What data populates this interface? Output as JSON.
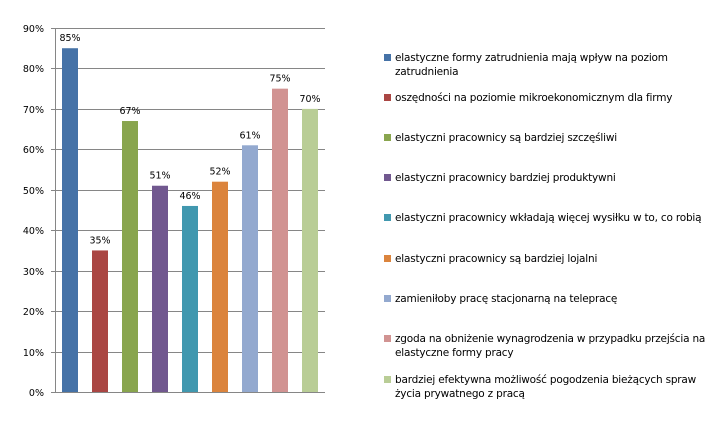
{
  "chart_data": {
    "type": "bar",
    "title": "",
    "xlabel": "",
    "ylabel": "",
    "ylim": [
      0,
      90
    ],
    "yticks": [
      "0%",
      "10%",
      "20%",
      "30%",
      "40%",
      "50%",
      "60%",
      "70%",
      "80%",
      "90%"
    ],
    "ytick_values": [
      0,
      10,
      20,
      30,
      40,
      50,
      60,
      70,
      80,
      90
    ],
    "grid": true,
    "legend_position": "right",
    "categories": [
      "elastyczne formy zatrudnienia mają wpływ na poziom zatrudnienia",
      "oszędności na poziomie mikroekonomicznym dla firmy",
      "elastyczni pracownicy są bardziej szczęśliwi",
      "elastyczni pracownicy bardziej produktywni",
      "elastyczni pracownicy wkładają więcej wysiłku w to, co robią",
      "elastyczni pracownicy są bardziej lojalni",
      "zamieniłoby pracę stacjonarną na telepracę",
      "zgoda na obniżenie wynagrodzenia w przypadku przejścia na elastyczne formy pracy",
      "bardziej efektywna możliwość pogodzenia bieżących spraw życia prywatnego z pracą"
    ],
    "values": [
      85,
      35,
      67,
      51,
      46,
      52,
      61,
      75,
      70
    ],
    "data_labels": [
      "85%",
      "35%",
      "67%",
      "51%",
      "46%",
      "52%",
      "61%",
      "75%",
      "70%"
    ],
    "colors": [
      "#4572A7",
      "#AA4643",
      "#89A54E",
      "#71588F",
      "#4198AF",
      "#DB843D",
      "#93A9CF",
      "#D19392",
      "#B9CD96"
    ],
    "legend_lines": [
      [
        "elastyczne formy zatrudnienia mają wpływ na poziom",
        "zatrudnienia"
      ],
      [
        "oszędności na poziomie mikroekonomicznym dla firmy"
      ],
      [
        "elastyczni pracownicy są bardziej szczęśliwi"
      ],
      [
        "elastyczni pracownicy bardziej produktywni"
      ],
      [
        "elastyczni pracownicy wkładają więcej wysiłku w to, co robią"
      ],
      [
        "elastyczni pracownicy są bardziej lojalni"
      ],
      [
        "zamieniłoby pracę stacjonarną na telepracę"
      ],
      [
        "zgoda na obniżenie wynagrodzenia w przypadku przejścia na",
        "elastyczne formy pracy"
      ],
      [
        "bardziej efektywna możliwość pogodzenia bieżących spraw",
        "życia prywatnego z pracą"
      ]
    ],
    "gridline_color": "#868686",
    "axis_color": "#868686"
  }
}
